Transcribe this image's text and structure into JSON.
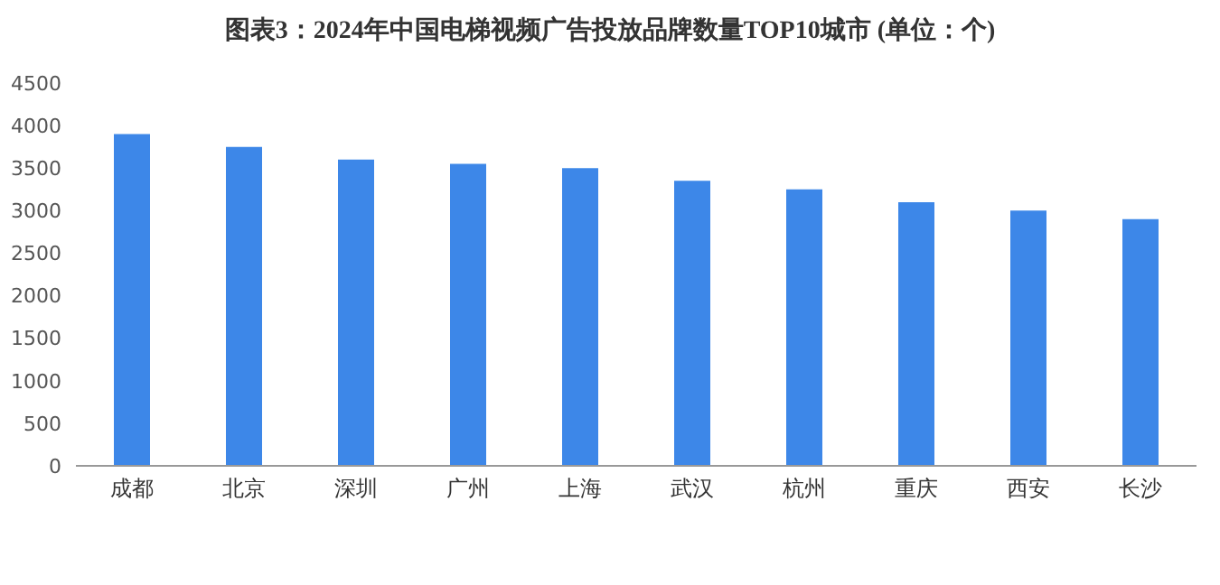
{
  "chart_data": {
    "type": "bar",
    "title": "图表3：2024年中国电梯视频广告投放品牌数量TOP10城市 (单位：个)",
    "categories": [
      "成都",
      "北京",
      "深圳",
      "广州",
      "上海",
      "武汉",
      "杭州",
      "重庆",
      "西安",
      "长沙"
    ],
    "values": [
      3900,
      3750,
      3600,
      3550,
      3500,
      3350,
      3250,
      3100,
      3000,
      2900
    ],
    "color": "#3d87e8",
    "ylim": [
      0,
      4500
    ],
    "yticks": [
      0,
      500,
      1000,
      1500,
      2000,
      2500,
      3000,
      3500,
      4000,
      4500
    ],
    "grid": false,
    "legend": false
  }
}
